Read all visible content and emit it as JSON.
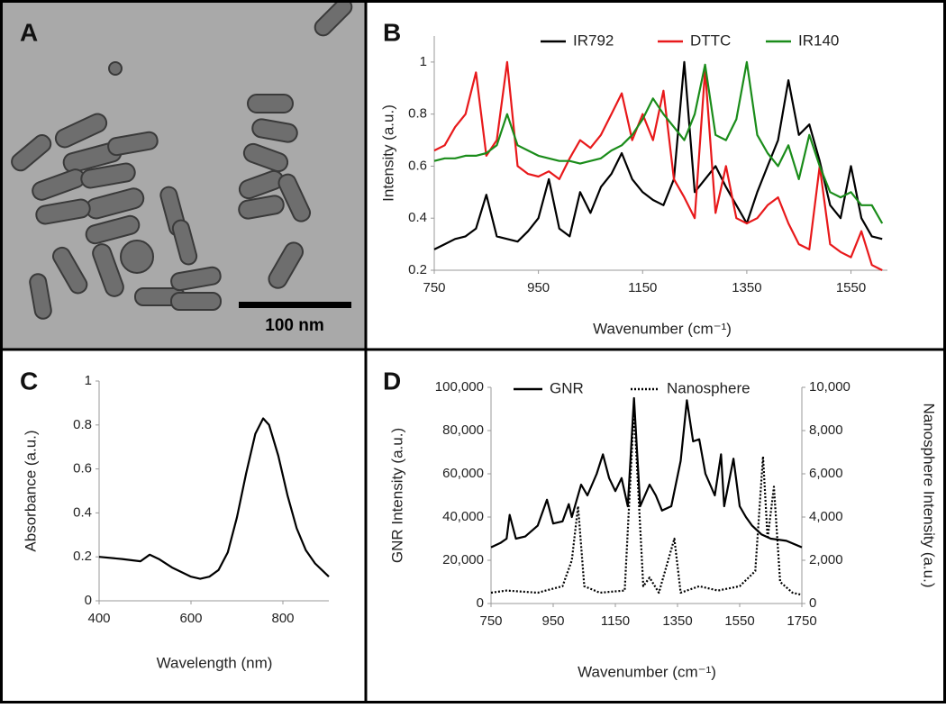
{
  "image_panel": {
    "label": "A",
    "scale_bar": "100 nm"
  },
  "chart_data": [
    {
      "label": "B",
      "type": "line",
      "xlabel": "Wavenumber  (cm⁻¹)",
      "ylabel": "Intensity (a.u.)",
      "xlim": [
        750,
        1620
      ],
      "xticks": [
        750,
        950,
        1150,
        1350,
        1550
      ],
      "ylim": [
        0.2,
        1.1
      ],
      "yticks": [
        0.2,
        0.4,
        0.6,
        0.8,
        1
      ],
      "x": [
        750,
        770,
        790,
        810,
        830,
        850,
        870,
        890,
        910,
        930,
        950,
        970,
        990,
        1010,
        1030,
        1050,
        1070,
        1090,
        1110,
        1130,
        1150,
        1170,
        1190,
        1210,
        1230,
        1250,
        1270,
        1290,
        1310,
        1330,
        1350,
        1370,
        1390,
        1410,
        1430,
        1450,
        1470,
        1490,
        1510,
        1530,
        1550,
        1570,
        1590,
        1610
      ],
      "series": [
        {
          "name": "IR792",
          "color": "#000000",
          "values": [
            0.28,
            0.3,
            0.32,
            0.33,
            0.36,
            0.49,
            0.33,
            0.32,
            0.31,
            0.35,
            0.4,
            0.55,
            0.36,
            0.33,
            0.5,
            0.42,
            0.52,
            0.57,
            0.65,
            0.55,
            0.5,
            0.47,
            0.45,
            0.55,
            1.0,
            0.5,
            0.55,
            0.6,
            0.52,
            0.45,
            0.38,
            0.5,
            0.6,
            0.7,
            0.93,
            0.72,
            0.76,
            0.62,
            0.45,
            0.4,
            0.6,
            0.4,
            0.33,
            0.32
          ]
        },
        {
          "name": "DTTC",
          "color": "#e8191b",
          "values": [
            0.66,
            0.68,
            0.75,
            0.8,
            0.96,
            0.64,
            0.7,
            1.0,
            0.6,
            0.57,
            0.56,
            0.58,
            0.55,
            0.63,
            0.7,
            0.67,
            0.72,
            0.8,
            0.88,
            0.7,
            0.8,
            0.7,
            0.89,
            0.55,
            0.48,
            0.4,
            0.97,
            0.42,
            0.6,
            0.4,
            0.38,
            0.4,
            0.45,
            0.48,
            0.38,
            0.3,
            0.28,
            0.6,
            0.3,
            0.27,
            0.25,
            0.35,
            0.22,
            0.2
          ]
        },
        {
          "name": "IR140",
          "color": "#1a8c1a",
          "values": [
            0.62,
            0.63,
            0.63,
            0.64,
            0.64,
            0.65,
            0.68,
            0.8,
            0.68,
            0.66,
            0.64,
            0.63,
            0.62,
            0.62,
            0.61,
            0.62,
            0.63,
            0.66,
            0.68,
            0.72,
            0.78,
            0.86,
            0.8,
            0.75,
            0.7,
            0.8,
            0.99,
            0.72,
            0.7,
            0.78,
            1.0,
            0.72,
            0.65,
            0.6,
            0.68,
            0.55,
            0.72,
            0.6,
            0.5,
            0.48,
            0.5,
            0.45,
            0.45,
            0.38
          ]
        }
      ]
    },
    {
      "label": "C",
      "type": "line",
      "xlabel": "Wavelength (nm)",
      "ylabel": "Absorbance (a.u.)",
      "xlim": [
        400,
        900
      ],
      "xticks": [
        400,
        600,
        800
      ],
      "ylim": [
        0,
        1
      ],
      "yticks": [
        0,
        0.2,
        0.4,
        0.6,
        0.8,
        1
      ],
      "x": [
        400,
        450,
        490,
        510,
        530,
        560,
        600,
        620,
        640,
        660,
        680,
        700,
        720,
        740,
        757,
        770,
        790,
        810,
        830,
        850,
        870,
        890,
        900
      ],
      "series": [
        {
          "color": "#000000",
          "values": [
            0.2,
            0.19,
            0.18,
            0.21,
            0.19,
            0.15,
            0.11,
            0.1,
            0.11,
            0.14,
            0.22,
            0.38,
            0.58,
            0.76,
            0.83,
            0.8,
            0.66,
            0.48,
            0.33,
            0.23,
            0.17,
            0.13,
            0.11
          ]
        }
      ]
    },
    {
      "label": "D",
      "type": "line",
      "xlabel": "Wavenumber  (cm⁻¹)",
      "ylabel": "GNR  Intensity (a.u.)",
      "y2label": "Nanosphere  Intensity (a.u.)",
      "xlim": [
        750,
        1750
      ],
      "xticks": [
        750,
        950,
        1150,
        1350,
        1550,
        1750
      ],
      "ylim": [
        0,
        100000
      ],
      "yticks": [
        0,
        {
          "value": 20000,
          "label": "20,000"
        },
        {
          "value": 40000,
          "label": "40,000"
        },
        {
          "value": 60000,
          "label": "60,000"
        },
        {
          "value": 80000,
          "label": "80,000"
        },
        {
          "value": 100000,
          "label": "100,000"
        }
      ],
      "y2lim": [
        0,
        10000
      ],
      "y2ticks": [
        0,
        {
          "value": 2000,
          "label": "2,000"
        },
        {
          "value": 4000,
          "label": "4,000"
        },
        {
          "value": 6000,
          "label": "6,000"
        },
        {
          "value": 8000,
          "label": "8,000"
        },
        {
          "value": 10000,
          "label": "10,000"
        }
      ],
      "series": [
        {
          "name": "GNR",
          "color": "#000000",
          "x": [
            750,
            780,
            800,
            810,
            830,
            860,
            900,
            930,
            950,
            980,
            1000,
            1010,
            1040,
            1060,
            1090,
            1110,
            1130,
            1150,
            1170,
            1190,
            1210,
            1230,
            1260,
            1280,
            1300,
            1330,
            1360,
            1380,
            1400,
            1420,
            1440,
            1470,
            1490,
            1500,
            1530,
            1550,
            1570,
            1590,
            1620,
            1650,
            1700,
            1750
          ],
          "values": [
            26000,
            28000,
            30000,
            41000,
            30000,
            31000,
            36000,
            48000,
            37000,
            38000,
            46000,
            40000,
            55000,
            50000,
            60000,
            69000,
            58000,
            52000,
            58000,
            45000,
            95000,
            45000,
            55000,
            50000,
            43000,
            45000,
            66000,
            94000,
            75000,
            76000,
            60000,
            50000,
            69000,
            45000,
            67000,
            45000,
            40000,
            36000,
            32000,
            30000,
            29000,
            26000
          ]
        },
        {
          "name": "Nanosphere",
          "color": "#000000",
          "dashed": true,
          "axis": "y2",
          "x": [
            750,
            800,
            900,
            980,
            1010,
            1030,
            1050,
            1100,
            1180,
            1210,
            1240,
            1260,
            1290,
            1340,
            1360,
            1420,
            1480,
            1550,
            1600,
            1625,
            1640,
            1660,
            1680,
            1720,
            1750
          ],
          "values": [
            500,
            600,
            500,
            800,
            2000,
            4500,
            800,
            500,
            600,
            9000,
            800,
            1200,
            500,
            3000,
            500,
            800,
            600,
            800,
            1500,
            6800,
            3000,
            5400,
            1000,
            500,
            400
          ]
        }
      ]
    }
  ]
}
